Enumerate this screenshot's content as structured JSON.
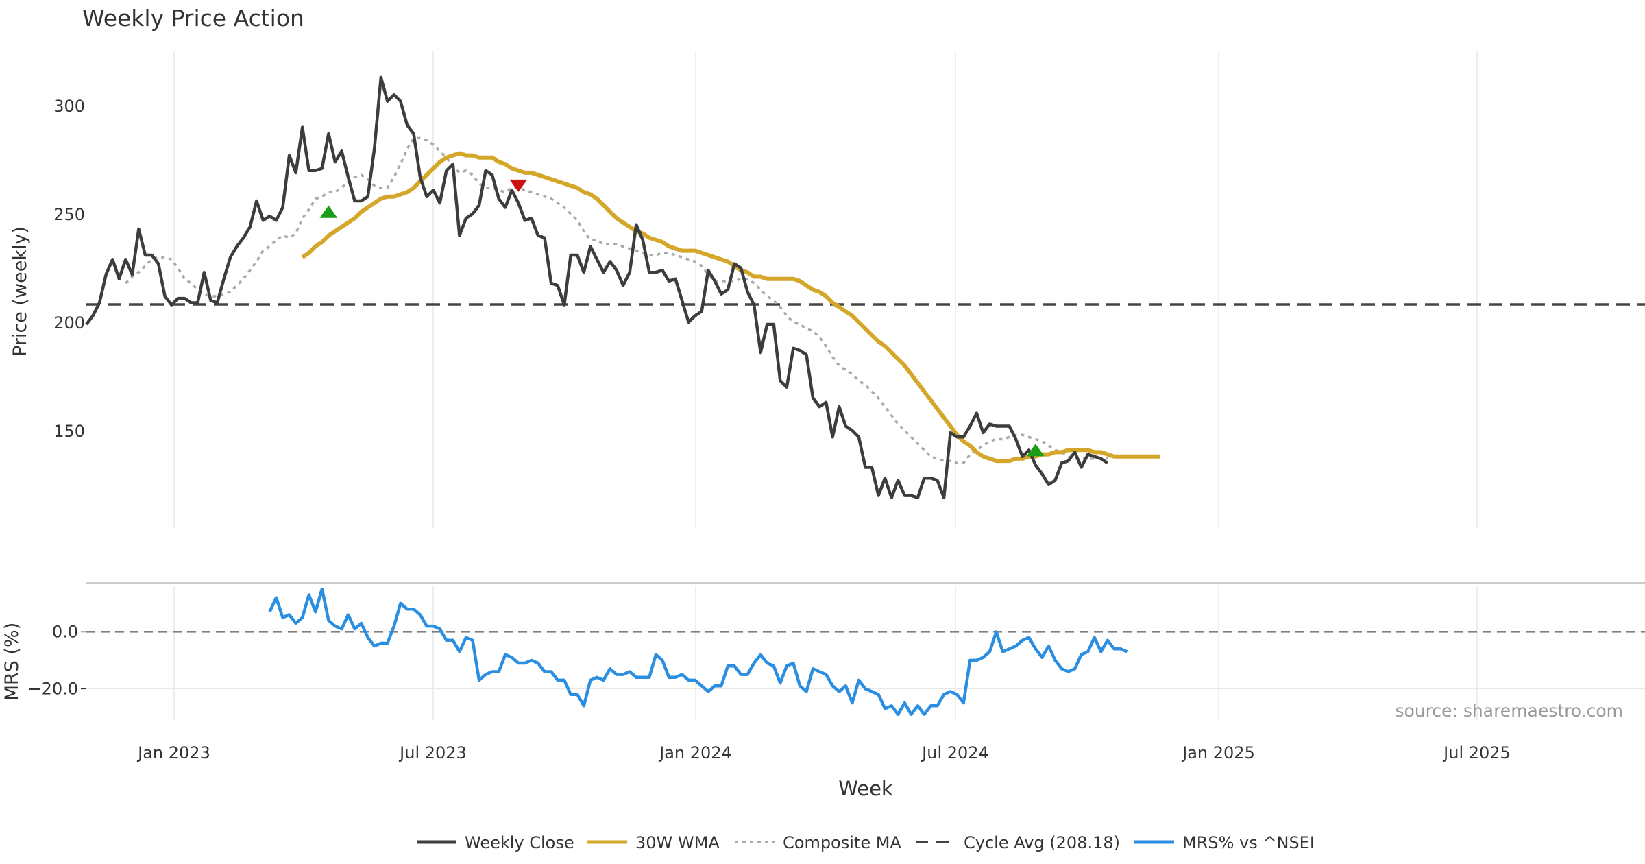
{
  "chart_data": {
    "type": "line",
    "title": "Weekly Price Action",
    "xlabel": "Week",
    "source_note": "source: sharemaestro.com",
    "x_tick_labels": [
      "Jan 2023",
      "Jul 2023",
      "Jan 2024",
      "Jul 2024",
      "Jan 2025",
      "Jul 2025"
    ],
    "price_panel": {
      "ylabel": "Price (weekly)",
      "ylim": [
        105,
        325
      ],
      "y_ticks": [
        150,
        200,
        250,
        300
      ],
      "y_tick_labels": [
        "150",
        "200",
        "250",
        "300"
      ],
      "cycle_avg": 208.18,
      "weekly_close": [
        199,
        203,
        209,
        222,
        229,
        220,
        229,
        222,
        243,
        231,
        231,
        227,
        212,
        208,
        211,
        211,
        209,
        209,
        223,
        210,
        209,
        220,
        230,
        235,
        239,
        244,
        256,
        247,
        249,
        247,
        253,
        277,
        269,
        290,
        270,
        270,
        271,
        287,
        274,
        279,
        267,
        256,
        256,
        258,
        280,
        313,
        302,
        305,
        302,
        291,
        287,
        267,
        258,
        261,
        255,
        270,
        273,
        240,
        248,
        250,
        254,
        270,
        268,
        257,
        253,
        261,
        255,
        247,
        248,
        240,
        239,
        218,
        217,
        208,
        231,
        231,
        223,
        235,
        229,
        223,
        228,
        224,
        217,
        223,
        245,
        238,
        223,
        223,
        224,
        219,
        220,
        210,
        200,
        203,
        205,
        224,
        219,
        213,
        215,
        227,
        225,
        214,
        208,
        186,
        199,
        199,
        173,
        170,
        188,
        187,
        185,
        165,
        161,
        163,
        147,
        161,
        152,
        150,
        147,
        133,
        133,
        120,
        128,
        119,
        127,
        120,
        120,
        119,
        128,
        128,
        127,
        119,
        149,
        147,
        147,
        152,
        158,
        149,
        153,
        152,
        152,
        152,
        146,
        138,
        141,
        134,
        130,
        125,
        127,
        135,
        136,
        140,
        133,
        139,
        138,
        137,
        135
      ],
      "wma_30w": {
        "start_index": 33,
        "values": [
          230,
          232,
          235,
          237,
          240,
          242,
          244,
          246,
          248,
          251,
          253,
          255,
          257,
          258,
          258,
          259,
          260,
          262,
          265,
          268,
          271,
          274,
          276,
          277,
          278,
          277,
          277,
          276,
          276,
          276,
          274,
          273,
          271,
          270,
          269,
          269,
          268,
          267,
          266,
          265,
          264,
          263,
          262,
          260,
          259,
          257,
          254,
          251,
          248,
          246,
          244,
          242,
          241,
          239,
          238,
          237,
          235,
          234,
          233,
          233,
          233,
          232,
          231,
          230,
          229,
          228,
          226,
          224,
          223,
          221,
          221,
          220,
          220,
          220,
          220,
          220,
          219,
          217,
          215,
          214,
          212,
          209,
          207,
          205,
          203,
          200,
          197,
          194,
          191,
          189,
          186,
          183,
          180,
          176,
          172,
          168,
          164,
          160,
          156,
          152,
          148,
          145,
          143,
          140,
          138,
          137,
          136,
          136,
          136,
          137,
          137,
          138,
          138,
          139,
          139,
          140,
          140,
          141,
          141,
          141,
          141,
          140,
          140,
          139,
          138,
          138,
          138,
          138,
          138,
          138,
          138,
          138
        ]
      },
      "composite_ma": {
        "start_index": 6,
        "values": [
          218,
          221,
          223,
          226,
          229,
          230,
          230,
          229,
          225,
          220,
          218,
          215,
          213,
          212,
          212,
          213,
          214,
          217,
          220,
          224,
          228,
          233,
          235,
          238,
          240,
          239,
          241,
          248,
          252,
          257,
          258,
          260,
          260,
          262,
          265,
          267,
          268,
          266,
          263,
          262,
          262,
          267,
          273,
          280,
          285,
          285,
          284,
          282,
          279,
          276,
          272,
          269,
          270,
          268,
          264,
          262,
          262,
          261,
          260,
          262,
          262,
          261,
          260,
          259,
          258,
          257,
          255,
          253,
          250,
          247,
          242,
          238,
          238,
          236,
          236,
          236,
          235,
          234,
          233,
          232,
          231,
          231,
          232,
          232,
          231,
          230,
          229,
          228,
          226,
          222,
          219,
          219,
          219,
          219,
          220,
          220,
          218,
          215,
          212,
          210,
          207,
          203,
          200,
          199,
          197,
          196,
          193,
          189,
          184,
          180,
          178,
          176,
          173,
          171,
          168,
          165,
          161,
          157,
          153,
          150,
          147,
          144,
          141,
          138,
          137,
          136,
          136,
          135,
          135,
          139,
          141,
          143,
          145,
          146,
          146,
          147,
          148,
          148,
          147,
          146,
          145,
          143,
          141,
          140,
          138,
          137,
          137,
          137,
          137,
          137,
          137
        ]
      },
      "signals": [
        {
          "type": "buy",
          "index": 37,
          "value": 251
        },
        {
          "type": "sell",
          "index": 66,
          "value": 263
        },
        {
          "type": "buy",
          "index": 145,
          "value": 141
        }
      ]
    },
    "mrs_panel": {
      "ylabel": "MRS (%)",
      "ylim": [
        -31,
        16
      ],
      "y_ticks": [
        0,
        -20
      ],
      "y_tick_labels": [
        "0.0",
        "−20.0"
      ],
      "mrs_vs_nsei": {
        "start_index": 28,
        "values": [
          7,
          12,
          5,
          6,
          3,
          5,
          13,
          7,
          15,
          4,
          2,
          1,
          6,
          1,
          3,
          -2,
          -5,
          -4,
          -4,
          2,
          10,
          8,
          8,
          6,
          2,
          2,
          1,
          -3,
          -3,
          -7,
          -2,
          -3,
          -17,
          -15,
          -14,
          -14,
          -8,
          -9,
          -11,
          -11,
          -10,
          -11,
          -14,
          -14,
          -17,
          -17,
          -22,
          -22,
          -26,
          -17,
          -16,
          -17,
          -13,
          -15,
          -15,
          -14,
          -16,
          -16,
          -16,
          -8,
          -10,
          -16,
          -16,
          -15,
          -17,
          -17,
          -19,
          -21,
          -19,
          -19,
          -12,
          -12,
          -15,
          -15,
          -11,
          -8,
          -11,
          -12,
          -18,
          -12,
          -11,
          -19,
          -21,
          -13,
          -14,
          -15,
          -19,
          -21,
          -19,
          -25,
          -17,
          -20,
          -21,
          -22,
          -27,
          -26,
          -29,
          -25,
          -29,
          -26,
          -29,
          -26,
          -26,
          -22,
          -21,
          -22,
          -25,
          -10,
          -10,
          -9,
          -7,
          0,
          -7,
          -6,
          -5,
          -3,
          -2,
          -6,
          -9,
          -5,
          -10,
          -13,
          -14,
          -13,
          -8,
          -7,
          -2,
          -7,
          -3,
          -6,
          -6,
          -7
        ]
      }
    },
    "legend": {
      "placement": "bottom-center",
      "entries": [
        {
          "label": "Weekly Close",
          "style": "solid",
          "color": "#3d3d3d"
        },
        {
          "label": "30W WMA",
          "style": "solid",
          "color": "#d4a62a"
        },
        {
          "label": "Composite MA",
          "style": "dotted",
          "color": "#aaaaaa"
        },
        {
          "label": "Cycle Avg (208.18)",
          "style": "dashed",
          "color": "#444444"
        },
        {
          "label": "MRS% vs ^NSEI",
          "style": "solid",
          "color": "#2b8ee0"
        }
      ]
    },
    "colors": {
      "close": "#3d3d3d",
      "wma": "#d4a62a",
      "composite": "#aaaaaa",
      "cycle": "#444444",
      "mrs": "#2b8ee0",
      "buy": "#1a9e1a",
      "sell": "#cc1111",
      "grid": "#e8e8e8",
      "text": "#333333"
    }
  }
}
